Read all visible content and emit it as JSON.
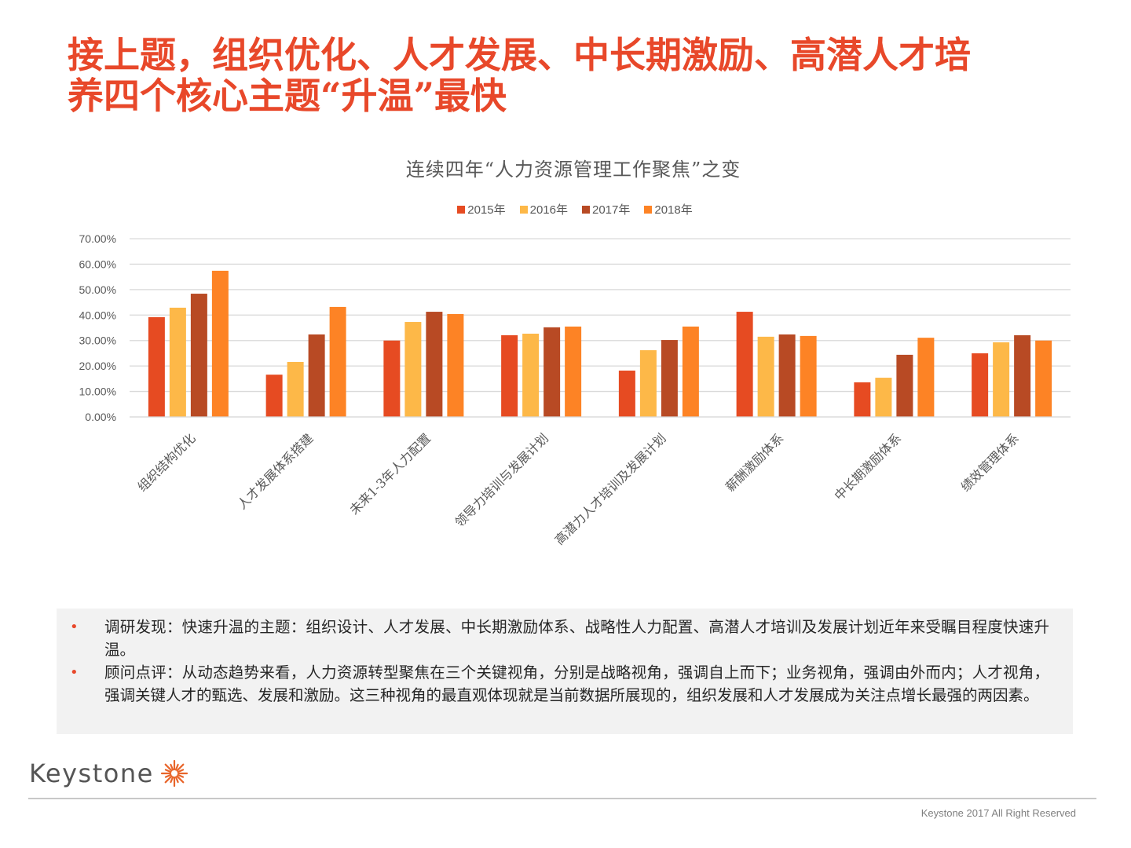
{
  "slide": {
    "title_lines": [
      "接上题，组织优化、人才发展、中长期激励、高潜人才培",
      "养四个核心主题“升温”最快"
    ],
    "accent_color": "#e8482a"
  },
  "chart_data": {
    "type": "bar",
    "title": "连续四年“人力资源管理工作聚焦”之变",
    "xlabel": "",
    "ylabel": "",
    "ylim": [
      0,
      0.7
    ],
    "yticks": [
      0,
      0.1,
      0.2,
      0.3,
      0.4,
      0.5,
      0.6,
      0.7
    ],
    "ytick_labels": [
      "0.00%",
      "10.00%",
      "20.00%",
      "30.00%",
      "40.00%",
      "50.00%",
      "60.00%",
      "70.00%"
    ],
    "grid": true,
    "legend_position": "top-center",
    "categories": [
      "组织结构优化",
      "人才发展体系搭建",
      "未来1-3年人力配置",
      "领导力培训与发展计划",
      "高潜力人才培训及发展计划",
      "薪酬激励体系",
      "中长期激励体系",
      "绩效管理体系"
    ],
    "series": [
      {
        "name": "2015年",
        "color": "#e64b22",
        "values": [
          0.392,
          0.166,
          0.3,
          0.321,
          0.182,
          0.413,
          0.136,
          0.25
        ]
      },
      {
        "name": "2016年",
        "color": "#fdb848",
        "values": [
          0.429,
          0.216,
          0.373,
          0.327,
          0.262,
          0.315,
          0.154,
          0.293
        ]
      },
      {
        "name": "2017年",
        "color": "#b84a24",
        "values": [
          0.484,
          0.324,
          0.413,
          0.352,
          0.302,
          0.324,
          0.244,
          0.321
        ]
      },
      {
        "name": "2018年",
        "color": "#fd8325",
        "values": [
          0.574,
          0.432,
          0.404,
          0.355,
          0.355,
          0.318,
          0.311,
          0.3
        ]
      }
    ]
  },
  "notes": [
    "调研发现：快速升温的主题：组织设计、人才发展、中长期激励体系、战略性人力配置、高潜人才培训及发展计划近年来受瞩目程度快速升温。",
    "顾问点评：从动态趋势来看，人力资源转型聚焦在三个关键视角，分别是战略视角，强调自上而下；业务视角，强调由外而内；人才视角，强调关键人才的甄选、发展和激励。这三种视角的最直观体现就是当前数据所展现的，组织发展和人才发展成为关注点增长最强的两因素。"
  ],
  "footer": {
    "logo_text": "Keystone",
    "logo_icon": "starburst-icon",
    "copyright": "Keystone 2017 All Right Reserved"
  }
}
